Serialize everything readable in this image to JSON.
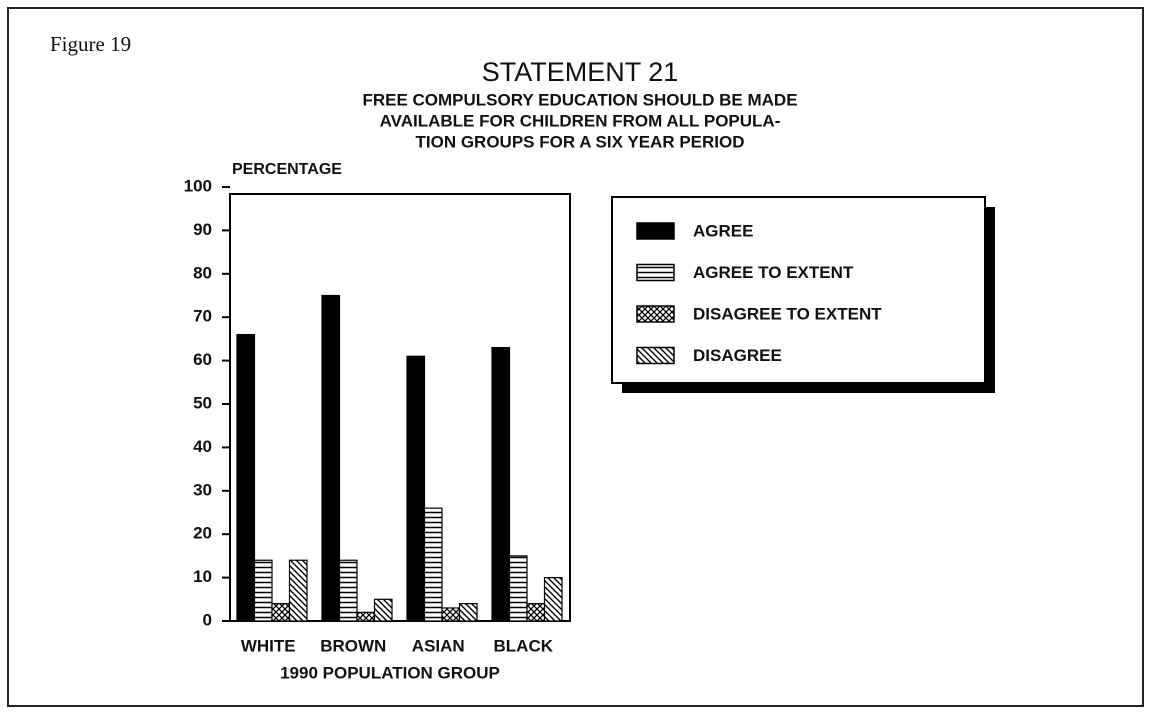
{
  "figure_label": "Figure 19",
  "chart_data": {
    "type": "bar",
    "title": "STATEMENT 21",
    "subtitle_lines": [
      "FREE COMPULSORY EDUCATION SHOULD BE MADE",
      "AVAILABLE FOR CHILDREN FROM ALL POPULA-",
      "TION GROUPS FOR A SIX YEAR PERIOD"
    ],
    "y_label": "PERCENTAGE",
    "x_label": "1990 POPULATION GROUP",
    "categories": [
      "WHITE",
      "BROWN",
      "ASIAN",
      "BLACK"
    ],
    "series": [
      {
        "name": "AGREE",
        "color": "#000000",
        "pattern": "solid",
        "values": [
          66,
          75,
          61,
          63
        ]
      },
      {
        "name": "AGREE TO EXTENT",
        "color": "#000000",
        "pattern": "horizontal",
        "values": [
          14,
          14,
          26,
          15
        ]
      },
      {
        "name": "DISAGREE TO EXTENT",
        "color": "#000000",
        "pattern": "crosshatch",
        "values": [
          4,
          2,
          3,
          4
        ]
      },
      {
        "name": "DISAGREE",
        "color": "#000000",
        "pattern": "diagonal",
        "values": [
          14,
          5,
          4,
          10
        ]
      }
    ],
    "ylim": [
      0,
      100
    ],
    "yticks": [
      0,
      10,
      20,
      30,
      40,
      50,
      60,
      70,
      80,
      90,
      100
    ],
    "grid": false,
    "legend": "right"
  }
}
